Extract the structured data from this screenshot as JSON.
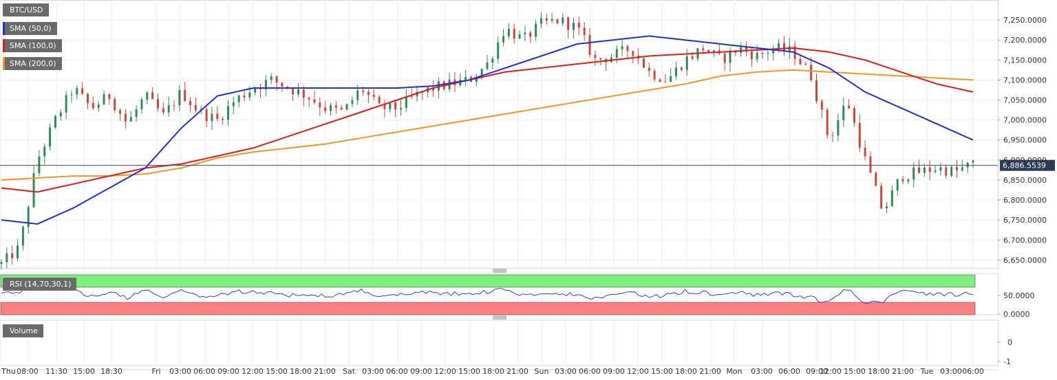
{
  "instrument": {
    "label": "BTC/USD"
  },
  "indicators": [
    {
      "label": "SMA (50,0)",
      "color": "#1f2fd6"
    },
    {
      "label": "SMA (100,0)",
      "color": "#e3191b"
    },
    {
      "label": "SMA (200,0)",
      "color": "#f5951d"
    }
  ],
  "rsi_panel": {
    "label": "RSI (14,70,30,1)",
    "overbought_color": "#7cf07c",
    "oversold_color": "#ff8080"
  },
  "volume_panel": {
    "label": "Volume"
  },
  "last_price": {
    "label": "6,886.5539",
    "value": 6886.5539
  },
  "chart_data": {
    "type": "candlestick",
    "y_ticks": [
      "7,250.0000",
      "7,200.0000",
      "7,150.0000",
      "7,100.0000",
      "7,050.0000",
      "7,000.0000",
      "6,950.0000",
      "6,900.0000",
      "6,850.0000",
      "6,800.0000",
      "6,750.0000",
      "6,700.0000",
      "6,650.0000"
    ],
    "y_tick_values": [
      7250,
      7200,
      7150,
      7100,
      7050,
      7000,
      6950,
      6900,
      6850,
      6800,
      6750,
      6700,
      6650
    ],
    "ylim": [
      6630,
      7300
    ],
    "rsi_ticks": [
      "50.0000",
      "0.0000"
    ],
    "rsi_tick_values": [
      50,
      0
    ],
    "volume_ticks": [
      "0",
      "-1"
    ],
    "x_ticks": [
      "Thu",
      "08:00",
      "11:30",
      "15:00",
      "18:30",
      "Fri",
      "03:00",
      "06:00",
      "09:00",
      "12:00",
      "15:00",
      "18:00",
      "21:00",
      "Sat",
      "03:00",
      "06:00",
      "09:00",
      "12:00",
      "15:00",
      "18:00",
      "21:00",
      "Sun",
      "03:00",
      "06:00",
      "09:00",
      "12:00",
      "15:00",
      "18:00",
      "21:00",
      "Mon",
      "03:00",
      "06:00",
      "09:00",
      "12:00",
      "15:00",
      "18:00",
      "21:00",
      "Tue",
      "03:00",
      "06:00"
    ],
    "price_anchors": [
      [
        0,
        6640
      ],
      [
        10,
        6680
      ],
      [
        20,
        6900
      ],
      [
        30,
        7000
      ],
      [
        40,
        7080
      ],
      [
        50,
        7030
      ],
      [
        60,
        7060
      ],
      [
        70,
        6990
      ],
      [
        80,
        7060
      ],
      [
        90,
        7010
      ],
      [
        100,
        7070
      ],
      [
        110,
        7020
      ],
      [
        120,
        7000
      ],
      [
        130,
        7050
      ],
      [
        140,
        7080
      ],
      [
        150,
        7100
      ],
      [
        160,
        7080
      ],
      [
        170,
        7060
      ],
      [
        180,
        7030
      ],
      [
        190,
        7020
      ],
      [
        200,
        7080
      ],
      [
        210,
        7030
      ],
      [
        220,
        7030
      ],
      [
        230,
        7060
      ],
      [
        240,
        7080
      ],
      [
        250,
        7090
      ],
      [
        260,
        7100
      ],
      [
        270,
        7140
      ],
      [
        280,
        7230
      ],
      [
        290,
        7200
      ],
      [
        300,
        7240
      ],
      [
        310,
        7250
      ],
      [
        320,
        7230
      ],
      [
        330,
        7150
      ],
      [
        340,
        7160
      ],
      [
        350,
        7180
      ],
      [
        360,
        7120
      ],
      [
        370,
        7100
      ],
      [
        380,
        7150
      ],
      [
        390,
        7180
      ],
      [
        400,
        7150
      ],
      [
        410,
        7180
      ],
      [
        420,
        7160
      ],
      [
        430,
        7180
      ],
      [
        440,
        7170
      ],
      [
        450,
        7110
      ],
      [
        460,
        6950
      ],
      [
        470,
        7050
      ],
      [
        480,
        6900
      ],
      [
        490,
        6770
      ],
      [
        500,
        6860
      ],
      [
        510,
        6870
      ],
      [
        520,
        6880
      ],
      [
        530,
        6870
      ],
      [
        540,
        6890
      ]
    ],
    "sma50_anchors": [
      [
        0,
        6750
      ],
      [
        20,
        6740
      ],
      [
        40,
        6780
      ],
      [
        60,
        6830
      ],
      [
        80,
        6880
      ],
      [
        100,
        6980
      ],
      [
        120,
        7060
      ],
      [
        140,
        7080
      ],
      [
        160,
        7080
      ],
      [
        180,
        7080
      ],
      [
        200,
        7080
      ],
      [
        220,
        7080
      ],
      [
        240,
        7085
      ],
      [
        260,
        7100
      ],
      [
        280,
        7130
      ],
      [
        300,
        7160
      ],
      [
        320,
        7190
      ],
      [
        340,
        7200
      ],
      [
        360,
        7210
      ],
      [
        380,
        7200
      ],
      [
        400,
        7190
      ],
      [
        420,
        7180
      ],
      [
        440,
        7170
      ],
      [
        460,
        7130
      ],
      [
        480,
        7070
      ],
      [
        500,
        7030
      ],
      [
        520,
        6990
      ],
      [
        540,
        6950
      ]
    ],
    "sma100_anchors": [
      [
        0,
        6830
      ],
      [
        20,
        6820
      ],
      [
        40,
        6840
      ],
      [
        60,
        6860
      ],
      [
        80,
        6880
      ],
      [
        100,
        6890
      ],
      [
        120,
        6910
      ],
      [
        140,
        6930
      ],
      [
        160,
        6960
      ],
      [
        180,
        6990
      ],
      [
        200,
        7020
      ],
      [
        220,
        7050
      ],
      [
        240,
        7080
      ],
      [
        260,
        7100
      ],
      [
        280,
        7120
      ],
      [
        300,
        7130
      ],
      [
        320,
        7140
      ],
      [
        340,
        7150
      ],
      [
        360,
        7160
      ],
      [
        380,
        7165
      ],
      [
        400,
        7170
      ],
      [
        420,
        7175
      ],
      [
        440,
        7180
      ],
      [
        460,
        7170
      ],
      [
        480,
        7150
      ],
      [
        500,
        7120
      ],
      [
        520,
        7090
      ],
      [
        540,
        7070
      ]
    ],
    "sma200_anchors": [
      [
        0,
        6850
      ],
      [
        20,
        6855
      ],
      [
        40,
        6860
      ],
      [
        60,
        6860
      ],
      [
        80,
        6865
      ],
      [
        100,
        6880
      ],
      [
        120,
        6905
      ],
      [
        140,
        6920
      ],
      [
        160,
        6930
      ],
      [
        180,
        6940
      ],
      [
        200,
        6955
      ],
      [
        220,
        6970
      ],
      [
        240,
        6985
      ],
      [
        260,
        7000
      ],
      [
        280,
        7015
      ],
      [
        300,
        7030
      ],
      [
        320,
        7045
      ],
      [
        340,
        7060
      ],
      [
        360,
        7075
      ],
      [
        380,
        7090
      ],
      [
        400,
        7110
      ],
      [
        420,
        7120
      ],
      [
        440,
        7125
      ],
      [
        460,
        7120
      ],
      [
        480,
        7115
      ],
      [
        500,
        7110
      ],
      [
        520,
        7105
      ],
      [
        540,
        7100
      ]
    ]
  }
}
